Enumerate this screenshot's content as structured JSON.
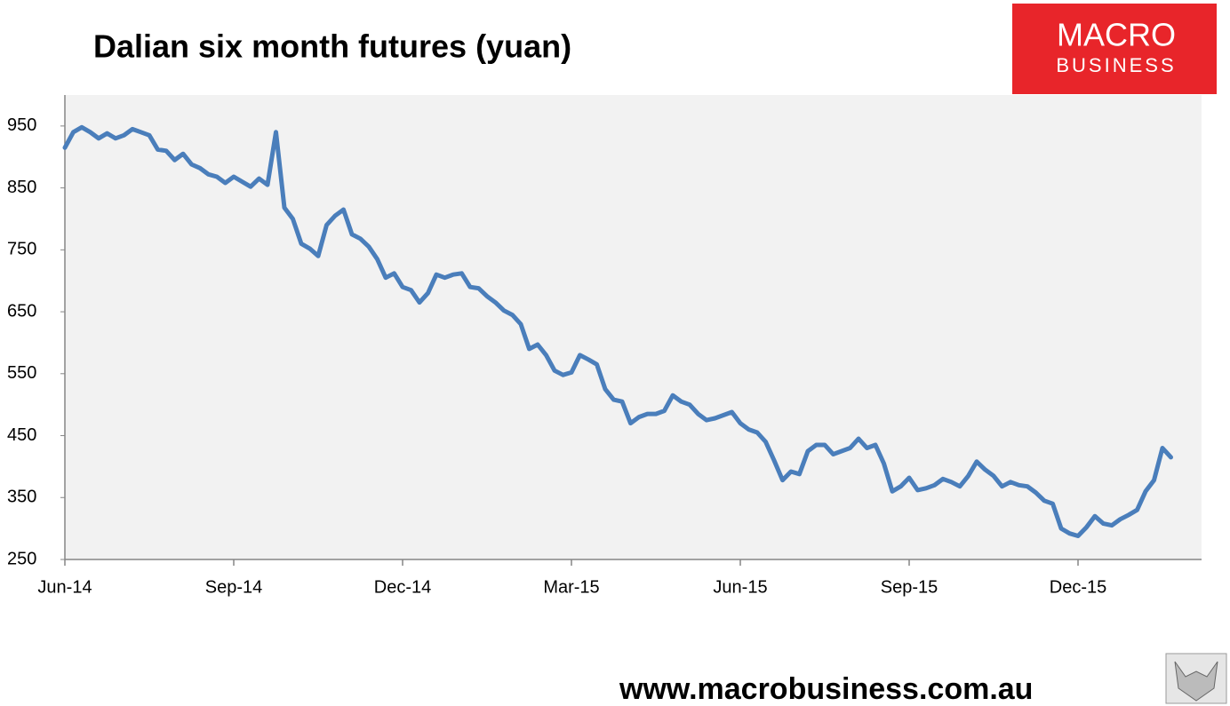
{
  "chart_data": {
    "type": "line",
    "title": "Dalian six month futures (yuan)",
    "color": "#4a7ebb",
    "ylim": [
      250,
      1000
    ],
    "yticks": [
      250,
      350,
      450,
      550,
      650,
      750,
      850,
      950
    ],
    "grid": false,
    "categories": [
      "Jun-14",
      null,
      null,
      null,
      null,
      null,
      null,
      null,
      null,
      null,
      null,
      null,
      null,
      null,
      null,
      null,
      null,
      null,
      null,
      null,
      "Sep-14",
      null,
      null,
      null,
      null,
      null,
      null,
      null,
      null,
      null,
      null,
      null,
      null,
      null,
      null,
      null,
      null,
      null,
      null,
      null,
      "Dec-14",
      null,
      null,
      null,
      null,
      null,
      null,
      null,
      null,
      null,
      null,
      null,
      null,
      null,
      null,
      null,
      null,
      null,
      null,
      null,
      "Mar-15",
      null,
      null,
      null,
      null,
      null,
      null,
      null,
      null,
      null,
      null,
      null,
      null,
      null,
      null,
      null,
      null,
      null,
      null,
      null,
      "Jun-15",
      null,
      null,
      null,
      null,
      null,
      null,
      null,
      null,
      null,
      null,
      null,
      null,
      null,
      null,
      null,
      null,
      null,
      null,
      null,
      "Sep-15",
      null,
      null,
      null,
      null,
      null,
      null,
      null,
      null,
      null,
      null,
      null,
      null,
      null,
      null,
      null,
      null,
      null,
      null,
      null,
      "Dec-15",
      null,
      null,
      null,
      null,
      null,
      null,
      null,
      null,
      null,
      null,
      null
    ],
    "values": [
      915,
      940,
      948,
      940,
      930,
      938,
      930,
      935,
      945,
      940,
      935,
      912,
      910,
      895,
      905,
      888,
      882,
      872,
      868,
      858,
      868,
      860,
      852,
      865,
      855,
      940,
      818,
      800,
      760,
      752,
      740,
      790,
      805,
      815,
      775,
      768,
      755,
      735,
      705,
      712,
      690,
      685,
      665,
      680,
      710,
      705,
      710,
      712,
      690,
      688,
      675,
      665,
      652,
      645,
      630,
      590,
      597,
      580,
      555,
      548,
      552,
      580,
      573,
      565,
      525,
      508,
      505,
      470,
      480,
      485,
      485,
      490,
      515,
      505,
      500,
      485,
      475,
      478,
      483,
      488,
      470,
      460,
      455,
      440,
      410,
      378,
      392,
      388,
      425,
      435,
      435,
      420,
      425,
      430,
      445,
      430,
      435,
      405,
      360,
      368,
      382,
      362,
      365,
      370,
      380,
      375,
      368,
      385,
      408,
      395,
      385,
      368,
      375,
      370,
      368,
      358,
      345,
      340,
      300,
      292,
      288,
      302,
      320,
      308,
      305,
      315,
      322,
      330,
      360,
      378,
      430,
      415
    ]
  },
  "branding": {
    "logo_line1": "MACRO",
    "logo_line2": "BUSINESS",
    "url": "www.macrobusiness.com.au"
  }
}
